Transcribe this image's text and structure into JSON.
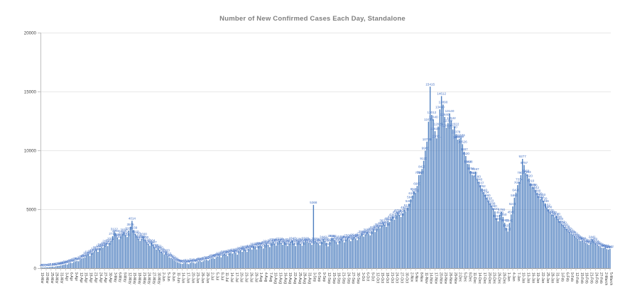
{
  "title": "Number of New Confirmed Cases Each Day, Standalone",
  "colors": {
    "bar": "#4d7ebf",
    "bar_label": "#4472c4",
    "gridline": "#e8e8e8",
    "axis_line": "#bfbfbf",
    "baseline": "#9a9a9a",
    "tick_text": "#404040",
    "title_text": "#7f7f7f"
  },
  "chart_data": {
    "type": "bar",
    "title": "Number of New Confirmed Cases Each Day, Standalone",
    "xlabel": "",
    "ylabel": "",
    "ylim": [
      0,
      20000
    ],
    "y_ticks": [
      0,
      5000,
      10000,
      15000,
      20000
    ],
    "grid": "horizontal",
    "legend": "none",
    "data_labels": "above each bar",
    "x_start": "19-Mar",
    "x_end": "5-March",
    "x_tick_every": 3,
    "x_tick_labels": [
      "19-Mar",
      "22-Mar",
      "25-Mar",
      "28-Mar",
      "31-Mar",
      "3-Apr",
      "6-Apr",
      "9-Apr",
      "12-Apr",
      "15-Apr",
      "18-Apr",
      "21-Apr",
      "24-Apr",
      "27-Apr",
      "30-Apr",
      "3-May",
      "6-May",
      "9-May",
      "12-May",
      "15-May",
      "18-May",
      "21-May",
      "24-May",
      "27-May",
      "30-May",
      "2-Jun",
      "5-Jun",
      "8-Jun",
      "11-Jun",
      "14-Jun",
      "17-Jun",
      "20-Jun",
      "23-Jun",
      "26-Jun",
      "29-Jun",
      "2-Jul",
      "5-Jul",
      "8-Jul",
      "11-Jul",
      "14-Jul",
      "17-Jul",
      "20-Jul",
      "23-Jul",
      "26-Jul",
      "29-Jul",
      "1-Aug",
      "4-Aug",
      "7-Aug",
      "10-Aug",
      "13-Aug",
      "16-Aug",
      "19-Aug",
      "22-Aug",
      "25-Aug",
      "28-Aug",
      "31-Aug",
      "3-Sep",
      "6-Sep",
      "9-Sep",
      "12-Sep",
      "15-Sep",
      "18-Sep",
      "21-Sep",
      "24-Sep",
      "27-Sep",
      "30-Sep",
      "3-Oct",
      "6-Oct",
      "9-Oct",
      "12-Oct",
      "15-Oct",
      "18-Oct",
      "21-Oct",
      "24-Oct",
      "27-Oct",
      "30-Oct",
      "2-Nov",
      "5-Nov",
      "8-Nov",
      "11-Nov",
      "14-Nov",
      "17-Nov",
      "20-Nov",
      "23-Nov",
      "26-Nov",
      "29-Nov",
      "2-Dec",
      "5-Dec",
      "8-Dec",
      "11-Dec",
      "14-Dec",
      "17-Dec",
      "20-Dec",
      "23-Dec",
      "26-Dec",
      "29-Dec",
      "1-Jan",
      "4-Jan",
      "7-Jan",
      "10-Jan",
      "13-Jan",
      "16-Jan",
      "19-Jan",
      "22-Jan",
      "25-Jan",
      "28-Jan",
      "31-Jan",
      "3-Feb",
      "6-Feb",
      "9-Feb",
      "12-Feb",
      "15-Feb",
      "18-Feb",
      "21-Feb",
      "24-Feb",
      "27-Feb",
      "2-March",
      "5-March"
    ],
    "values": [
      45,
      60,
      52,
      74,
      81,
      95,
      110,
      128,
      104,
      152,
      174,
      196,
      228,
      262,
      298,
      334,
      310,
      402,
      458,
      430,
      515,
      572,
      610,
      584,
      702,
      788,
      856,
      920,
      1106,
      1188,
      1045,
      1247,
      1352,
      1451,
      1572,
      1385,
      1688,
      1820,
      1742,
      1955,
      2094,
      1873,
      2156,
      2312,
      2724,
      3122,
      2964,
      2590,
      2445,
      2678,
      2887,
      3058,
      2820,
      2641,
      3190,
      3505,
      4014,
      3239,
      2910,
      2758,
      2515,
      2325,
      2480,
      2690,
      2430,
      2210,
      2058,
      1912,
      2164,
      1987,
      1765,
      1580,
      1672,
      1540,
      1385,
      1262,
      1148,
      1320,
      1042,
      918,
      842,
      760,
      655,
      580,
      505,
      448,
      392,
      358,
      415,
      472,
      388,
      340,
      425,
      510,
      458,
      395,
      468,
      552,
      610,
      528,
      584,
      672,
      715,
      640,
      722,
      815,
      880,
      794,
      905,
      988,
      1056,
      920,
      1112,
      1205,
      1148,
      1020,
      1255,
      1312,
      1240,
      1356,
      1288,
      1150,
      1420,
      1510,
      1385,
      1602,
      1544,
      1380,
      1625,
      1710,
      1580,
      1835,
      1762,
      1590,
      1880,
      1941,
      1850,
      1672,
      2010,
      2099,
      1955,
      1788,
      2140,
      2256,
      2085,
      1920,
      2188,
      2310,
      2150,
      1985,
      2240,
      2122,
      1890,
      2058,
      2214,
      2340,
      2105,
      1876,
      2150,
      2280,
      2068,
      1912,
      2195,
      2326,
      2240,
      2150,
      2105,
      1980,
      5368,
      2306,
      2185,
      2089,
      1952,
      2237,
      2442,
      2320,
      2150,
      1845,
      2226,
      2529,
      2544,
      2380,
      2210,
      2020,
      2315,
      2488,
      2372,
      2190,
      2435,
      2560,
      2410,
      2288,
      2515,
      2640,
      2505,
      2380,
      2610,
      2742,
      2905,
      2680,
      2852,
      3056,
      2920,
      2785,
      3140,
      3280,
      3065,
      3355,
      3512,
      3400,
      3637,
      3837,
      3680,
      3515,
      4015,
      3920,
      4180,
      4342,
      4120,
      4554,
      4722,
      4505,
      4349,
      4640,
      4943,
      4810,
      5120,
      5480,
      5840,
      6166,
      6530,
      6380,
      6980,
      7899,
      7928,
      8420,
      9120,
      9980,
      10738,
      12436,
      15415,
      13012,
      12640,
      11632,
      11021,
      12026,
      13480,
      14612,
      13890,
      12840,
      11920,
      12320,
      13140,
      12542,
      11780,
      12022,
      11378,
      10912,
      10969,
      11101,
      10526,
      9887,
      9520,
      8849,
      8828,
      8256,
      7911,
      7862,
      8197,
      7580,
      7340,
      7037,
      6762,
      6440,
      6234,
      5980,
      5742,
      5510,
      5288,
      5060,
      4820,
      4215,
      3980,
      4520,
      4780,
      4350,
      3860,
      3420,
      3120,
      3840,
      4560,
      5240,
      5980,
      6420,
      7050,
      7334,
      7901,
      9277,
      8757,
      8069,
      7963,
      7620,
      7210,
      6873,
      6856,
      6642,
      6380,
      6120,
      5843,
      6040,
      5720,
      5499,
      5152,
      4980,
      4720,
      4559,
      4522,
      4313,
      4420,
      4156,
      3980,
      3751,
      3660,
      3490,
      3328,
      3180,
      3062,
      2920,
      2838,
      2710,
      2598,
      2480,
      2380,
      2290,
      2319,
      2210,
      2120,
      2040,
      1980,
      2150,
      2441,
      2280,
      2104,
      1985,
      1870,
      1795,
      1740,
      1690,
      1744,
      1620,
      1580,
      1642
    ]
  }
}
